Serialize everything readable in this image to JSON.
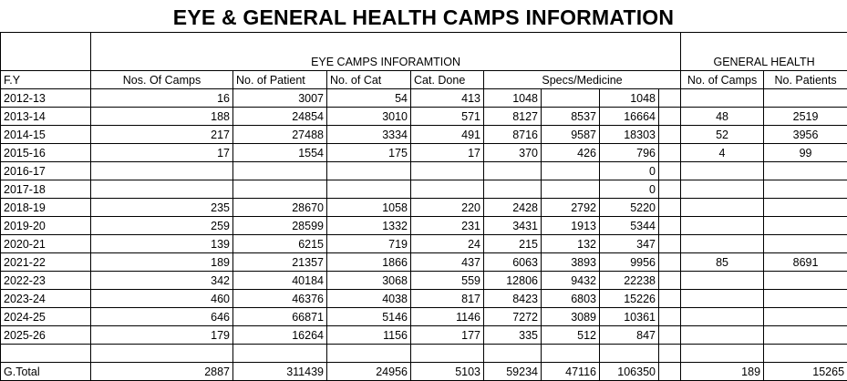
{
  "title": "EYE & GENERAL HEALTH CAMPS INFORMATION",
  "group_headers": {
    "eye": "EYE CAMPS INFORAMTION",
    "general": "GENERAL HEALTH"
  },
  "columns": {
    "fy": "F.Y",
    "camps": "Nos. Of Camps",
    "patients": "No. of Patient",
    "cat": "No. of Cat",
    "cat_done": "Cat. Done",
    "specs": "Specs/Medicine",
    "gh_camps": "No. of Camps",
    "gh_patients": "No. Patients"
  },
  "rows": [
    [
      "2012-13",
      "16",
      "3007",
      "54",
      "413",
      "1048",
      "",
      "1048",
      "",
      ""
    ],
    [
      "2013-14",
      "188",
      "24854",
      "3010",
      "571",
      "8127",
      "8537",
      "16664",
      "48",
      "2519"
    ],
    [
      "2014-15",
      "217",
      "27488",
      "3334",
      "491",
      "8716",
      "9587",
      "18303",
      "52",
      "3956"
    ],
    [
      "2015-16",
      "17",
      "1554",
      "175",
      "17",
      "370",
      "426",
      "796",
      "4",
      "99"
    ],
    [
      "2016-17",
      "",
      "",
      "",
      "",
      "",
      "",
      "0",
      "",
      ""
    ],
    [
      "2017-18",
      "",
      "",
      "",
      "",
      "",
      "",
      "0",
      "",
      ""
    ],
    [
      "2018-19",
      "235",
      "28670",
      "1058",
      "220",
      "2428",
      "2792",
      "5220",
      "",
      ""
    ],
    [
      "2019-20",
      "259",
      "28599",
      "1332",
      "231",
      "3431",
      "1913",
      "5344",
      "",
      ""
    ],
    [
      "2020-21",
      "139",
      "6215",
      "719",
      "24",
      "215",
      "132",
      "347",
      "",
      ""
    ],
    [
      "2021-22",
      "189",
      "21357",
      "1866",
      "437",
      "6063",
      "3893",
      "9956",
      "85",
      "8691"
    ],
    [
      "2022-23",
      "342",
      "40184",
      "3068",
      "559",
      "12806",
      "9432",
      "22238",
      "",
      ""
    ],
    [
      "2023-24",
      "460",
      "46376",
      "4038",
      "817",
      "8423",
      "6803",
      "15226",
      "",
      ""
    ],
    [
      "2024-25",
      "646",
      "66871",
      "5146",
      "1146",
      "7272",
      "3089",
      "10361",
      "",
      ""
    ],
    [
      "2025-26",
      "179",
      "16264",
      "1156",
      "177",
      "335",
      "512",
      "847",
      "",
      ""
    ]
  ],
  "total": [
    "G.Total",
    "2887",
    "311439",
    "24956",
    "5103",
    "59234",
    "47116",
    "106350",
    "189",
    "15265"
  ]
}
